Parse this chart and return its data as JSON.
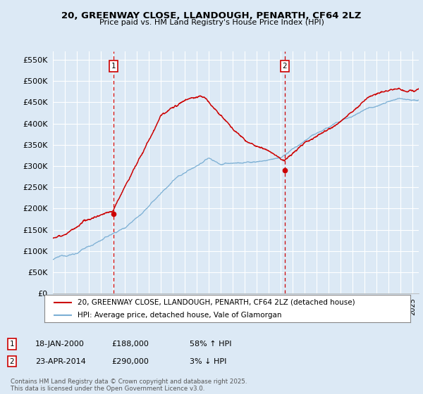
{
  "title": "20, GREENWAY CLOSE, LLANDOUGH, PENARTH, CF64 2LZ",
  "subtitle": "Price paid vs. HM Land Registry's House Price Index (HPI)",
  "background_color": "#dce9f5",
  "plot_bg_color": "#dce9f5",
  "grid_color": "#ffffff",
  "ylim": [
    0,
    570000
  ],
  "yticks": [
    0,
    50000,
    100000,
    150000,
    200000,
    250000,
    300000,
    350000,
    400000,
    450000,
    500000,
    550000
  ],
  "ytick_labels": [
    "£0",
    "£50K",
    "£100K",
    "£150K",
    "£200K",
    "£250K",
    "£300K",
    "£350K",
    "£400K",
    "£450K",
    "£500K",
    "£550K"
  ],
  "sale1_date": "18-JAN-2000",
  "sale1_price": 188000,
  "sale1_pct": "58% ↑ HPI",
  "sale2_date": "23-APR-2014",
  "sale2_price": 290000,
  "sale2_pct": "3% ↓ HPI",
  "legend_label1": "20, GREENWAY CLOSE, LLANDOUGH, PENARTH, CF64 2LZ (detached house)",
  "legend_label2": "HPI: Average price, detached house, Vale of Glamorgan",
  "footer": "Contains HM Land Registry data © Crown copyright and database right 2025.\nThis data is licensed under the Open Government Licence v3.0.",
  "line_color_property": "#cc0000",
  "line_color_hpi": "#7bafd4",
  "vline_color": "#cc0000",
  "marker1_x": 2000.05,
  "marker2_x": 2014.31,
  "marker1_y": 188000,
  "marker2_y": 290000,
  "xmin": 1995,
  "xmax": 2025.5
}
